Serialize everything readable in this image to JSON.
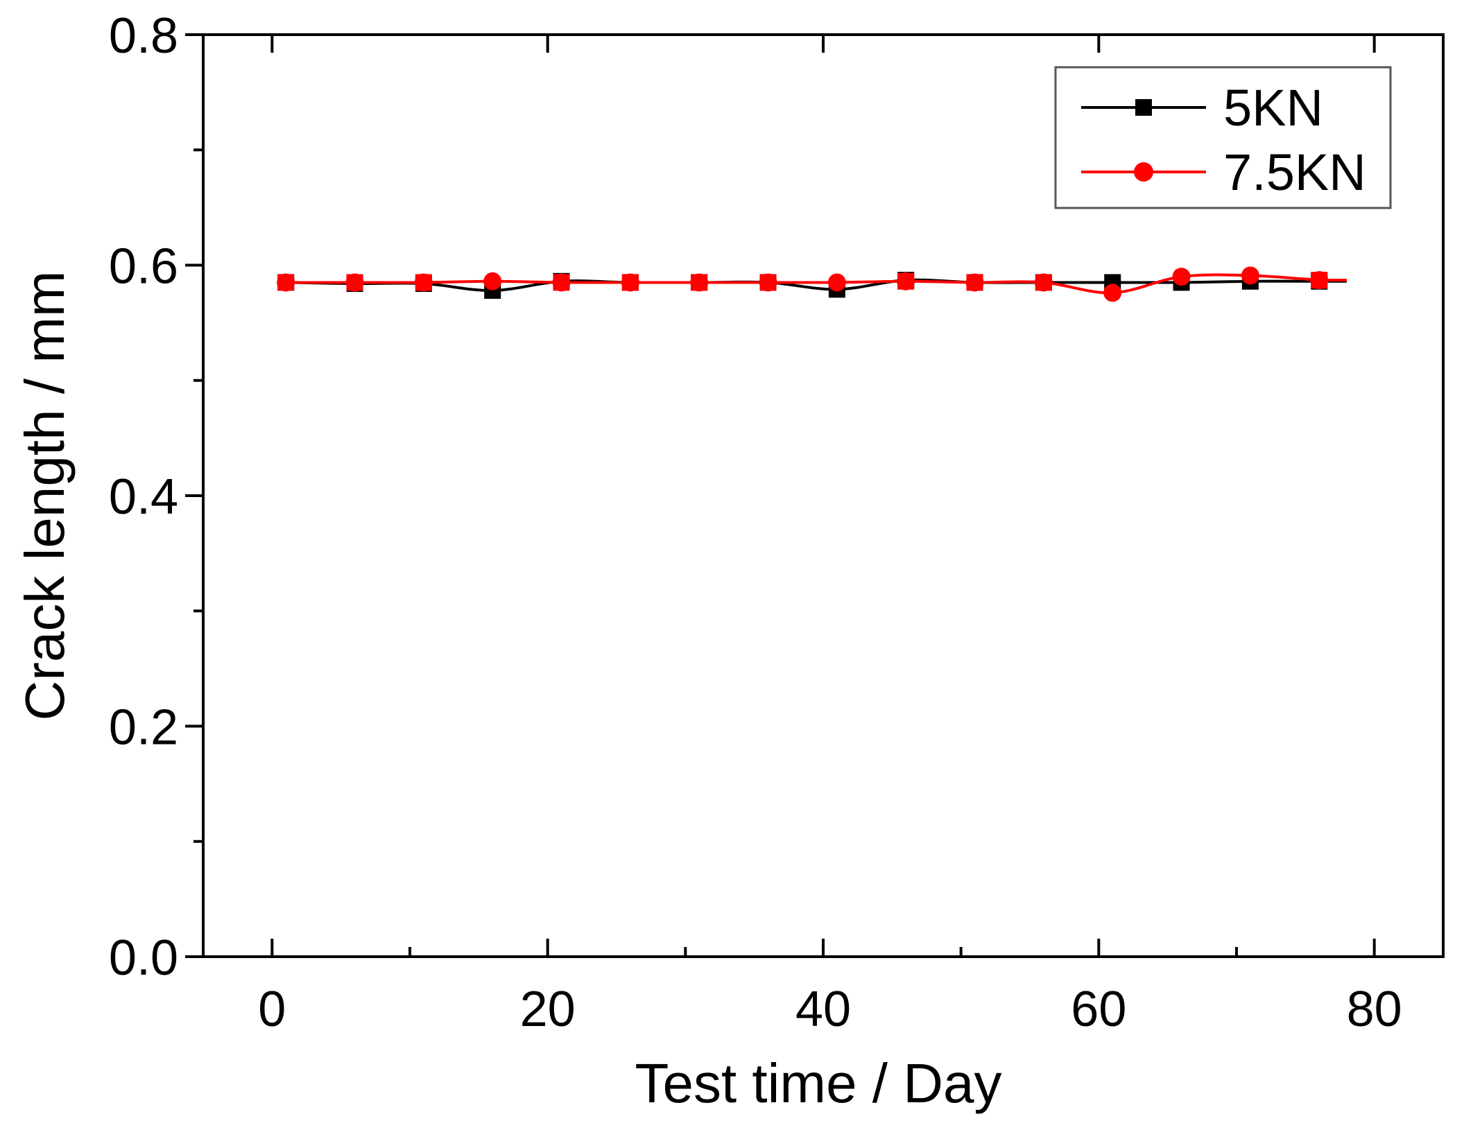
{
  "chart_data": {
    "type": "line",
    "title": "",
    "xlabel": "Test time / Day",
    "ylabel": "Crack length / mm",
    "xlim": [
      -5,
      85
    ],
    "ylim": [
      0.0,
      0.8
    ],
    "x_ticks": [
      0,
      20,
      40,
      60,
      80
    ],
    "x_tick_labels": [
      "0",
      "20",
      "40",
      "60",
      "80"
    ],
    "y_ticks": [
      0.0,
      0.2,
      0.4,
      0.6,
      0.8
    ],
    "y_tick_labels": [
      "0.0",
      "0.2",
      "0.4",
      "0.6",
      "0.8"
    ],
    "legend_position": "top-right",
    "grid": false,
    "series": [
      {
        "name": "5KN",
        "color": "#000000",
        "marker": "square",
        "x": [
          1,
          6,
          11,
          16,
          21,
          26,
          31,
          36,
          41,
          46,
          51,
          56,
          61,
          66,
          71,
          76
        ],
        "values": [
          0.585,
          0.584,
          0.584,
          0.578,
          0.586,
          0.585,
          0.585,
          0.585,
          0.579,
          0.587,
          0.585,
          0.585,
          0.585,
          0.585,
          0.586,
          0.586
        ]
      },
      {
        "name": "7.5KN",
        "color": "#ff0000",
        "marker": "circle",
        "x": [
          1,
          6,
          11,
          16,
          21,
          26,
          31,
          36,
          41,
          46,
          51,
          56,
          61,
          66,
          71,
          76
        ],
        "values": [
          0.585,
          0.585,
          0.585,
          0.586,
          0.585,
          0.585,
          0.585,
          0.585,
          0.585,
          0.586,
          0.585,
          0.585,
          0.576,
          0.59,
          0.591,
          0.587
        ]
      }
    ]
  }
}
